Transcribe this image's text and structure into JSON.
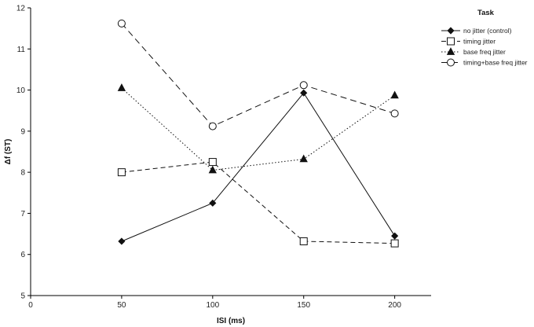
{
  "chart_data": {
    "type": "line",
    "title": "",
    "xlabel": "ISI (ms)",
    "ylabel": "Δf (ST)",
    "xlim": [
      0,
      220
    ],
    "ylim": [
      5,
      12
    ],
    "x_ticks": [
      0,
      50,
      100,
      150,
      200
    ],
    "y_ticks": [
      5,
      6,
      7,
      8,
      9,
      10,
      11,
      12
    ],
    "grid": false,
    "legend_position": "top-right",
    "legend_title": "Task",
    "x": [
      50,
      100,
      150,
      200
    ],
    "series": [
      {
        "name": "no jitter (control)",
        "values": [
          6.32,
          7.25,
          9.93,
          6.45
        ],
        "marker": "filled-diamond",
        "line_style": "solid",
        "color": "#111111"
      },
      {
        "name": "timing jitter",
        "values": [
          8.0,
          8.25,
          6.32,
          6.27
        ],
        "marker": "open-square",
        "line_style": "dashed",
        "color": "#111111"
      },
      {
        "name": "base freq jitter",
        "values": [
          10.05,
          8.05,
          8.32,
          9.87
        ],
        "marker": "filled-triangle",
        "line_style": "dotted",
        "color": "#111111"
      },
      {
        "name": "timing+base freq jitter",
        "values": [
          11.62,
          9.12,
          10.12,
          9.43
        ],
        "marker": "open-circle",
        "line_style": "long-dashed",
        "color": "#111111"
      }
    ]
  }
}
